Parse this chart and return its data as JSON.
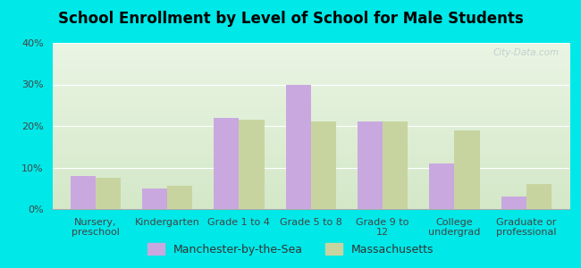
{
  "title": "School Enrollment by Level of School for Male Students",
  "categories": [
    "Nursery,\npreschool",
    "Kindergarten",
    "Grade 1 to 4",
    "Grade 5 to 8",
    "Grade 9 to\n12",
    "College\nundergrad",
    "Graduate or\nprofessional"
  ],
  "manchester_values": [
    8,
    5,
    22,
    30,
    21,
    11,
    3
  ],
  "massachusetts_values": [
    7.5,
    5.5,
    21.5,
    21,
    21,
    19,
    6
  ],
  "manchester_color": "#c9a8e0",
  "massachusetts_color": "#c8d4a0",
  "background_outer": "#00e8e8",
  "background_inner_top": "#eaf5e4",
  "background_inner_bottom": "#d4e8c8",
  "ylim": [
    0,
    40
  ],
  "yticks": [
    0,
    10,
    20,
    30,
    40
  ],
  "ytick_labels": [
    "0%",
    "10%",
    "20%",
    "30%",
    "40%"
  ],
  "legend_labels": [
    "Manchester-by-the-Sea",
    "Massachusetts"
  ],
  "bar_width": 0.35,
  "title_fontsize": 12,
  "tick_fontsize": 8,
  "legend_fontsize": 9,
  "watermark_text": "City-Data.com"
}
